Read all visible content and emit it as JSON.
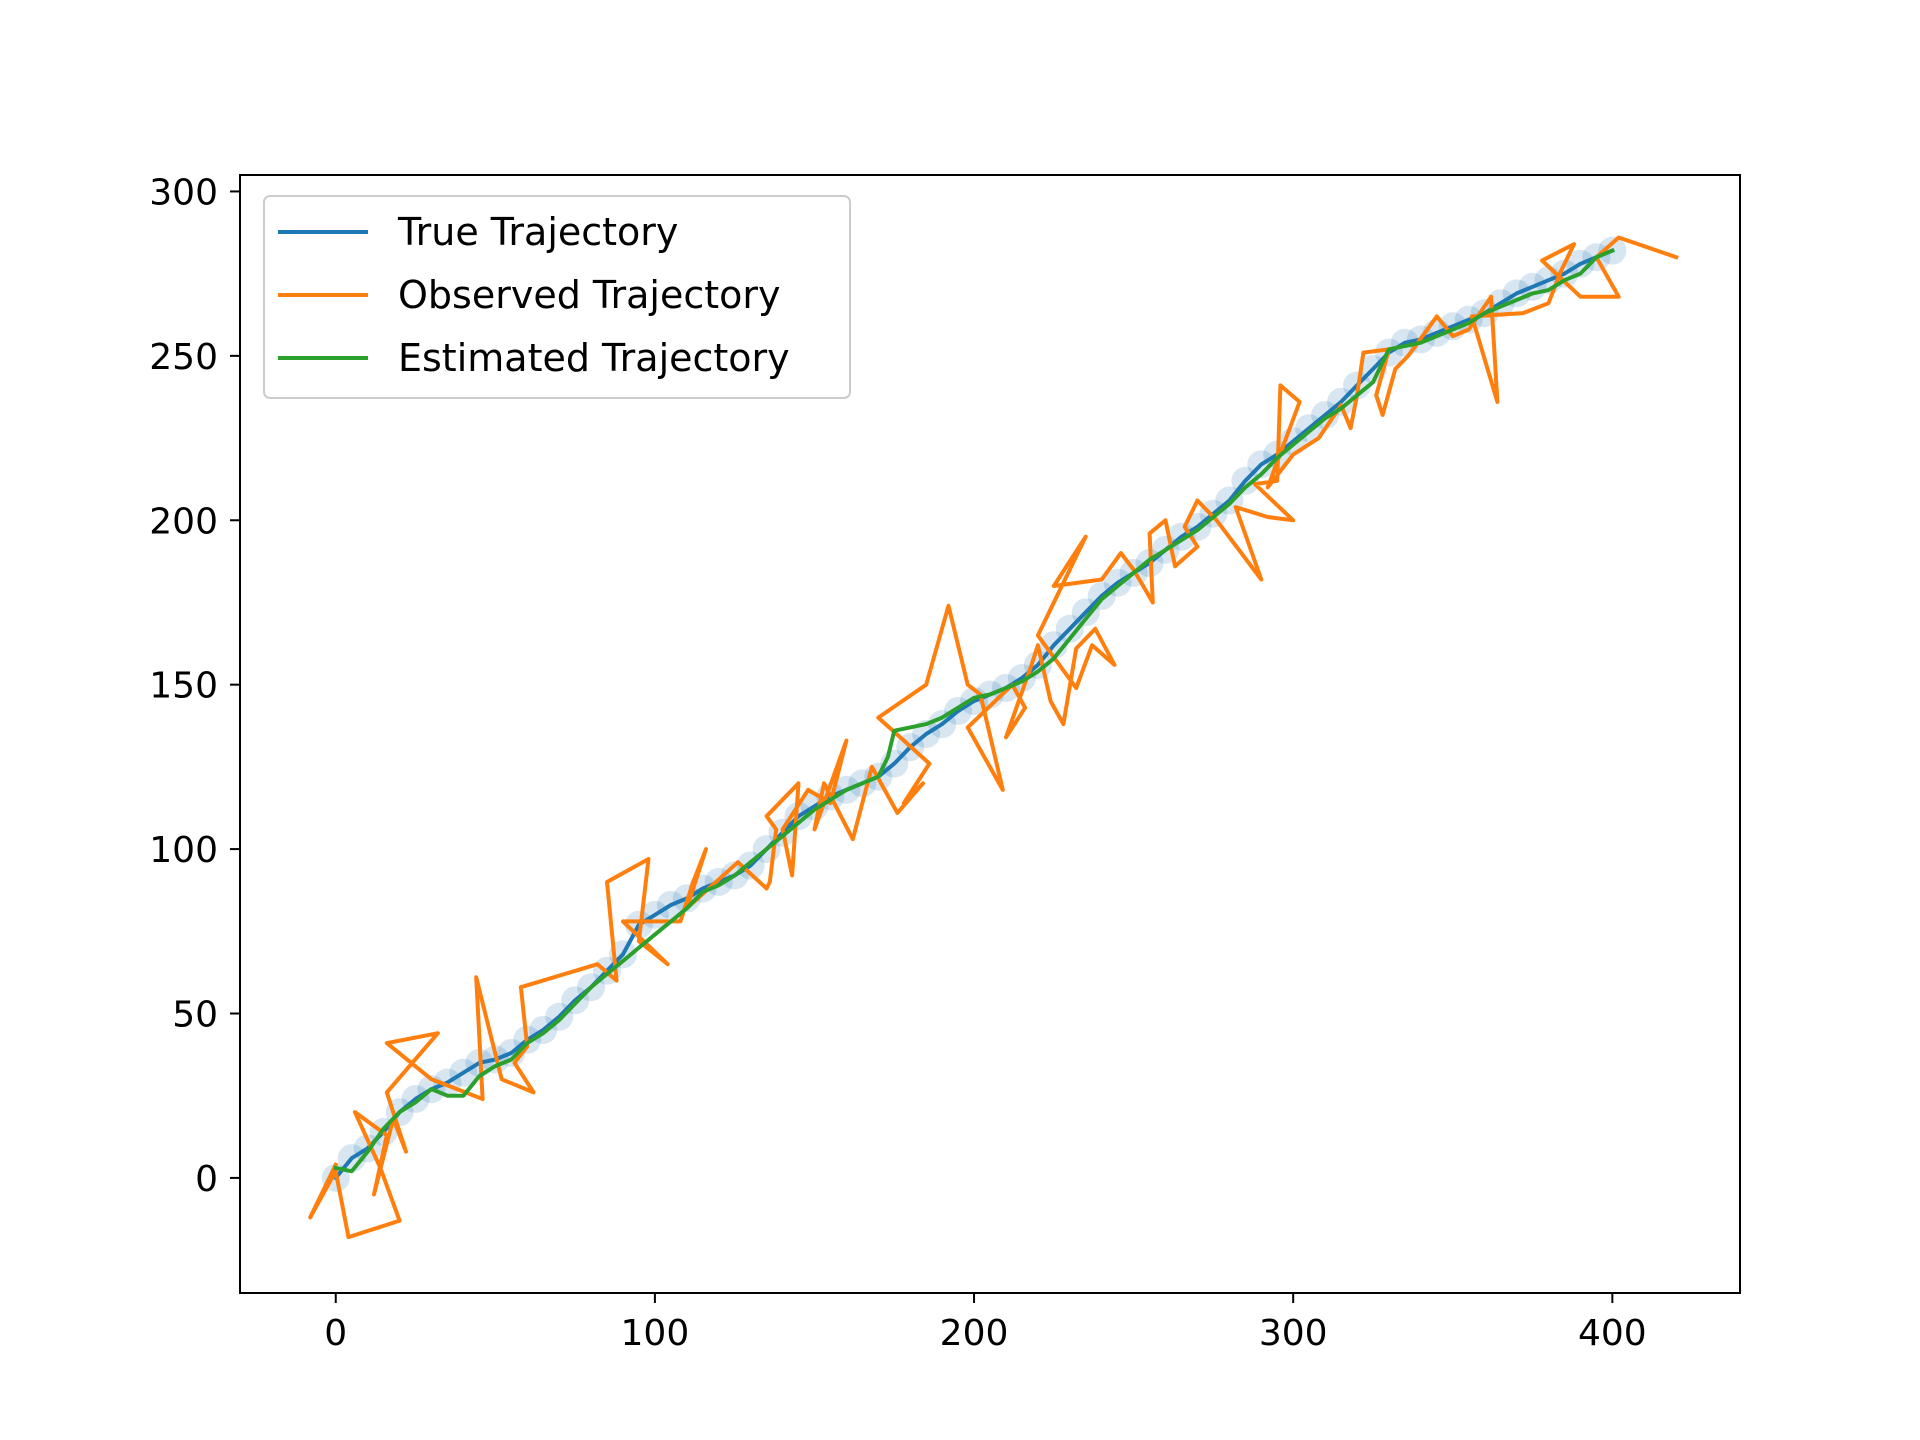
{
  "chart_data": {
    "type": "line",
    "title": "",
    "xlabel": "",
    "ylabel": "",
    "xlim": [
      -30,
      440
    ],
    "ylim": [
      -35,
      305
    ],
    "xticks": [
      0,
      100,
      200,
      300,
      400
    ],
    "yticks": [
      0,
      50,
      100,
      150,
      200,
      250,
      300
    ],
    "grid": false,
    "legend_position": "upper-left",
    "series": [
      {
        "name": "True Trajectory",
        "color": "#1f77b4",
        "points": [
          [
            0,
            0
          ],
          [
            5,
            6
          ],
          [
            10,
            9
          ],
          [
            15,
            14
          ],
          [
            20,
            20
          ],
          [
            25,
            24
          ],
          [
            30,
            27
          ],
          [
            35,
            29
          ],
          [
            40,
            32
          ],
          [
            45,
            35
          ],
          [
            50,
            36
          ],
          [
            55,
            38
          ],
          [
            60,
            42
          ],
          [
            65,
            45
          ],
          [
            70,
            49
          ],
          [
            75,
            54
          ],
          [
            80,
            58
          ],
          [
            85,
            63
          ],
          [
            90,
            68
          ],
          [
            95,
            77
          ],
          [
            100,
            80
          ],
          [
            105,
            83
          ],
          [
            110,
            85
          ],
          [
            115,
            88
          ],
          [
            120,
            90
          ],
          [
            125,
            92
          ],
          [
            130,
            95
          ],
          [
            135,
            100
          ],
          [
            140,
            105
          ],
          [
            145,
            110
          ],
          [
            150,
            113
          ],
          [
            155,
            116
          ],
          [
            160,
            118
          ],
          [
            165,
            120
          ],
          [
            170,
            122
          ],
          [
            175,
            126
          ],
          [
            180,
            131
          ],
          [
            185,
            135
          ],
          [
            190,
            138
          ],
          [
            195,
            142
          ],
          [
            200,
            145
          ],
          [
            205,
            147
          ],
          [
            210,
            149
          ],
          [
            215,
            152
          ],
          [
            220,
            156
          ],
          [
            225,
            162
          ],
          [
            230,
            167
          ],
          [
            235,
            172
          ],
          [
            240,
            177
          ],
          [
            245,
            181
          ],
          [
            250,
            184
          ],
          [
            255,
            187
          ],
          [
            260,
            191
          ],
          [
            265,
            195
          ],
          [
            270,
            198
          ],
          [
            275,
            202
          ],
          [
            280,
            206
          ],
          [
            285,
            212
          ],
          [
            290,
            217
          ],
          [
            295,
            220
          ],
          [
            300,
            224
          ],
          [
            305,
            228
          ],
          [
            310,
            232
          ],
          [
            315,
            236
          ],
          [
            320,
            241
          ],
          [
            325,
            246
          ],
          [
            330,
            251
          ],
          [
            335,
            254
          ],
          [
            340,
            255
          ],
          [
            345,
            257
          ],
          [
            350,
            259
          ],
          [
            355,
            261
          ],
          [
            360,
            263
          ],
          [
            365,
            266
          ],
          [
            370,
            269
          ],
          [
            375,
            271
          ],
          [
            380,
            273
          ],
          [
            385,
            275
          ],
          [
            390,
            278
          ],
          [
            395,
            280
          ],
          [
            400,
            282
          ]
        ]
      },
      {
        "name": "Observed Trajectory",
        "color": "#ff7f0e",
        "points": [
          [
            0,
            4
          ],
          [
            -8,
            -12
          ],
          [
            0,
            2
          ],
          [
            4,
            -18
          ],
          [
            20,
            -13
          ],
          [
            14,
            3
          ],
          [
            6,
            20
          ],
          [
            16,
            13
          ],
          [
            12,
            -5
          ],
          [
            18,
            18
          ],
          [
            22,
            8
          ],
          [
            16,
            26
          ],
          [
            32,
            44
          ],
          [
            16,
            41
          ],
          [
            30,
            30
          ],
          [
            46,
            24
          ],
          [
            44,
            61
          ],
          [
            52,
            30
          ],
          [
            62,
            26
          ],
          [
            56,
            35
          ],
          [
            60,
            40
          ],
          [
            58,
            58
          ],
          [
            82,
            65
          ],
          [
            88,
            60
          ],
          [
            85,
            90
          ],
          [
            98,
            97
          ],
          [
            95,
            72
          ],
          [
            104,
            65
          ],
          [
            90,
            78
          ],
          [
            108,
            78
          ],
          [
            112,
            90
          ],
          [
            116,
            100
          ],
          [
            110,
            82
          ],
          [
            126,
            96
          ],
          [
            135,
            88
          ],
          [
            136,
            90
          ],
          [
            138,
            106
          ],
          [
            135,
            110
          ],
          [
            145,
            120
          ],
          [
            143,
            92
          ],
          [
            140,
            106
          ],
          [
            148,
            118
          ],
          [
            155,
            114
          ],
          [
            160,
            133
          ],
          [
            150,
            106
          ],
          [
            153,
            120
          ],
          [
            162,
            103
          ],
          [
            168,
            125
          ],
          [
            176,
            111
          ],
          [
            184,
            120
          ],
          [
            178,
            114
          ],
          [
            186,
            126
          ],
          [
            170,
            140
          ],
          [
            185,
            150
          ],
          [
            192,
            174
          ],
          [
            198,
            150
          ],
          [
            202,
            147
          ],
          [
            209,
            118
          ],
          [
            198,
            137
          ],
          [
            212,
            150
          ],
          [
            216,
            143
          ],
          [
            210,
            134
          ],
          [
            218,
            156
          ],
          [
            220,
            162
          ],
          [
            224,
            145
          ],
          [
            228,
            138
          ],
          [
            232,
            161
          ],
          [
            238,
            167
          ],
          [
            244,
            156
          ],
          [
            237,
            162
          ],
          [
            232,
            149
          ],
          [
            220,
            165
          ],
          [
            235,
            195
          ],
          [
            225,
            180
          ],
          [
            240,
            182
          ],
          [
            246,
            190
          ],
          [
            250,
            185
          ],
          [
            256,
            175
          ],
          [
            255,
            196
          ],
          [
            260,
            200
          ],
          [
            263,
            186
          ],
          [
            270,
            192
          ],
          [
            266,
            198
          ],
          [
            270,
            206
          ],
          [
            276,
            200
          ],
          [
            290,
            182
          ],
          [
            282,
            204
          ],
          [
            292,
            201
          ],
          [
            300,
            200
          ],
          [
            288,
            211
          ],
          [
            295,
            212
          ],
          [
            296,
            241
          ],
          [
            302,
            236
          ],
          [
            292,
            210
          ],
          [
            300,
            220
          ],
          [
            308,
            225
          ],
          [
            315,
            235
          ],
          [
            318,
            228
          ],
          [
            320,
            238
          ],
          [
            322,
            251
          ],
          [
            330,
            252
          ],
          [
            326,
            238
          ],
          [
            328,
            232
          ],
          [
            332,
            246
          ],
          [
            336,
            250
          ],
          [
            345,
            262
          ],
          [
            350,
            256
          ],
          [
            355,
            258
          ],
          [
            362,
            268
          ],
          [
            364,
            236
          ],
          [
            356,
            262
          ],
          [
            372,
            263
          ],
          [
            380,
            266
          ],
          [
            384,
            276
          ],
          [
            388,
            284
          ],
          [
            378,
            279
          ],
          [
            390,
            268
          ],
          [
            402,
            268
          ],
          [
            395,
            280
          ],
          [
            402,
            286
          ],
          [
            420,
            280
          ]
        ]
      },
      {
        "name": "Estimated Trajectory",
        "color": "#2ca02c",
        "points": [
          [
            0,
            3
          ],
          [
            5,
            2
          ],
          [
            10,
            8
          ],
          [
            15,
            15
          ],
          [
            20,
            20
          ],
          [
            25,
            23
          ],
          [
            30,
            27
          ],
          [
            35,
            25
          ],
          [
            40,
            25
          ],
          [
            45,
            31
          ],
          [
            50,
            34
          ],
          [
            55,
            36
          ],
          [
            60,
            41
          ],
          [
            65,
            44
          ],
          [
            70,
            48
          ],
          [
            75,
            53
          ],
          [
            80,
            58
          ],
          [
            85,
            62
          ],
          [
            90,
            66
          ],
          [
            95,
            70
          ],
          [
            100,
            74
          ],
          [
            105,
            78
          ],
          [
            110,
            82
          ],
          [
            115,
            87
          ],
          [
            120,
            89
          ],
          [
            125,
            92
          ],
          [
            130,
            96
          ],
          [
            135,
            100
          ],
          [
            140,
            104
          ],
          [
            145,
            108
          ],
          [
            150,
            112
          ],
          [
            155,
            115
          ],
          [
            160,
            118
          ],
          [
            165,
            120
          ],
          [
            170,
            122
          ],
          [
            173,
            128
          ],
          [
            175,
            136
          ],
          [
            180,
            137
          ],
          [
            185,
            138
          ],
          [
            190,
            140
          ],
          [
            195,
            143
          ],
          [
            200,
            146
          ],
          [
            205,
            147
          ],
          [
            210,
            149
          ],
          [
            215,
            151
          ],
          [
            220,
            154
          ],
          [
            225,
            158
          ],
          [
            230,
            164
          ],
          [
            235,
            170
          ],
          [
            240,
            176
          ],
          [
            245,
            180
          ],
          [
            250,
            184
          ],
          [
            255,
            188
          ],
          [
            260,
            191
          ],
          [
            265,
            194
          ],
          [
            270,
            197
          ],
          [
            275,
            201
          ],
          [
            280,
            205
          ],
          [
            285,
            210
          ],
          [
            290,
            214
          ],
          [
            295,
            219
          ],
          [
            300,
            223
          ],
          [
            305,
            227
          ],
          [
            310,
            231
          ],
          [
            315,
            234
          ],
          [
            320,
            238
          ],
          [
            325,
            242
          ],
          [
            330,
            252
          ],
          [
            335,
            253
          ],
          [
            340,
            254
          ],
          [
            345,
            256
          ],
          [
            350,
            258
          ],
          [
            355,
            260
          ],
          [
            360,
            263
          ],
          [
            365,
            265
          ],
          [
            370,
            267
          ],
          [
            375,
            269
          ],
          [
            380,
            270
          ],
          [
            385,
            273
          ],
          [
            390,
            275
          ],
          [
            395,
            280
          ],
          [
            400,
            282
          ]
        ]
      }
    ]
  }
}
